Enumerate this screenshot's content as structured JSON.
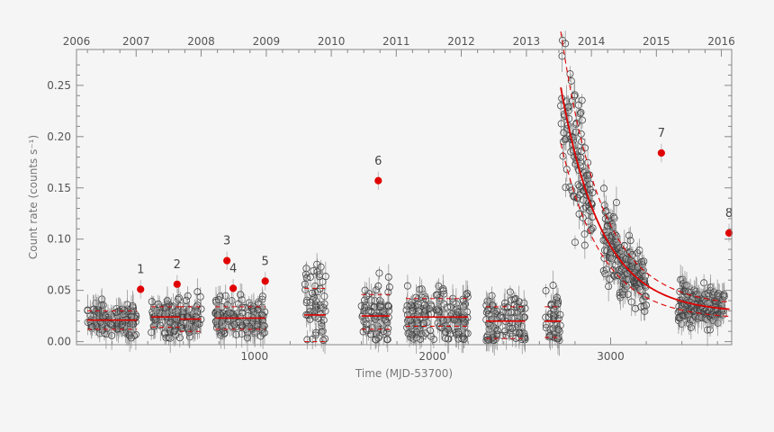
{
  "chart_data": {
    "type": "scatter",
    "xlabel": "Time (MJD-53700)",
    "ylabel": "Count rate (counts s⁻¹)",
    "xlim": [
      0,
      3680
    ],
    "ylim": [
      -0.003,
      0.285
    ],
    "x_ticks": [
      1000,
      2000,
      3000
    ],
    "y_ticks": [
      0.0,
      0.05,
      0.1,
      0.15,
      0.2,
      0.25
    ],
    "y_tick_labels": [
      "0.00",
      "0.05",
      "0.10",
      "0.15",
      "0.20",
      "0.25"
    ],
    "top_axis_years": [
      "2006",
      "2007",
      "2008",
      "2009",
      "2010",
      "2011",
      "2012",
      "2013",
      "2014",
      "2015",
      "2016"
    ],
    "top_axis_year_x": [
      -30,
      335,
      700,
      1066,
      1431,
      1796,
      2161,
      2527,
      2892,
      3257,
      3622
    ],
    "grid": false,
    "legend": "none",
    "colors": {
      "points": "#444444",
      "highlight": "#e00000",
      "fit": "#e00000",
      "axis": "#888888"
    },
    "monitoring_segments": [
      {
        "x_range": [
          60,
          340
        ],
        "mean": 0.021,
        "band": [
          0.012,
          0.03
        ]
      },
      {
        "x_range": [
          420,
          580
        ],
        "mean": 0.024,
        "band": [
          0.014,
          0.034
        ]
      },
      {
        "x_range": [
          580,
          700
        ],
        "mean": 0.022,
        "band": [
          0.01,
          0.034
        ]
      },
      {
        "x_range": [
          780,
          1060
        ],
        "mean": 0.023,
        "band": [
          0.012,
          0.034
        ]
      },
      {
        "x_range": [
          1280,
          1400
        ],
        "mean": 0.026,
        "band": [
          0.0,
          0.052
        ]
      },
      {
        "x_range": [
          1600,
          1760
        ],
        "mean": 0.025,
        "band": [
          0.012,
          0.046
        ]
      },
      {
        "x_range": [
          1850,
          2200
        ],
        "mean": 0.024,
        "band": [
          0.015,
          0.042
        ]
      },
      {
        "x_range": [
          2300,
          2520
        ],
        "mean": 0.02,
        "band": [
          0.003,
          0.034
        ]
      },
      {
        "x_range": [
          2630,
          2720
        ],
        "mean": 0.02,
        "band": [
          0.004,
          0.034
        ]
      }
    ],
    "decay_fit": {
      "peak_x": 2720,
      "peak_y": 0.248,
      "baseline": 0.028,
      "tau_days": 230,
      "x_end": 3670,
      "band_fraction": 0.22
    },
    "outbursts": [
      {
        "label": "1",
        "x": 360,
        "y": 0.051
      },
      {
        "label": "2",
        "x": 565,
        "y": 0.056
      },
      {
        "label": "3",
        "x": 845,
        "y": 0.079
      },
      {
        "label": "4",
        "x": 880,
        "y": 0.052
      },
      {
        "label": "5",
        "x": 1060,
        "y": 0.059
      },
      {
        "label": "6",
        "x": 1695,
        "y": 0.157
      },
      {
        "label": "7",
        "x": 3285,
        "y": 0.184
      },
      {
        "label": "8",
        "x": 3665,
        "y": 0.106
      }
    ]
  }
}
